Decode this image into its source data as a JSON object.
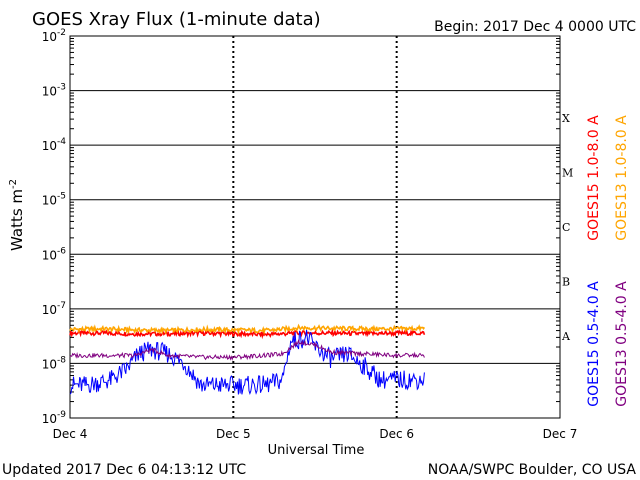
{
  "header": {
    "title": "GOES Xray Flux (1-minute data)",
    "begin": "Begin:  2017 Dec 4 0000 UTC"
  },
  "footer": {
    "updated": "Updated 2017 Dec  6 04:13:12 UTC",
    "credit": "NOAA/SWPC Boulder, CO USA"
  },
  "chart_data": {
    "type": "line",
    "title": "GOES Xray Flux (1-minute data)",
    "xlabel": "Universal Time",
    "ylabel": "Watts m",
    "ylabel_sup": "-2",
    "y_scale": "log",
    "ylim": [
      1e-09,
      0.01
    ],
    "y_ticks": [
      {
        "value": 1e-09,
        "base": "10",
        "exp": "-9"
      },
      {
        "value": 1e-08,
        "base": "10",
        "exp": "-8"
      },
      {
        "value": 1e-07,
        "base": "10",
        "exp": "-7"
      },
      {
        "value": 1e-06,
        "base": "10",
        "exp": "-6"
      },
      {
        "value": 1e-05,
        "base": "10",
        "exp": "-5"
      },
      {
        "value": 0.0001,
        "base": "10",
        "exp": "-4"
      },
      {
        "value": 0.001,
        "base": "10",
        "exp": "-3"
      },
      {
        "value": 0.01,
        "base": "10",
        "exp": "-2"
      }
    ],
    "x_unit": "days since 2017 Dec 4 0000 UTC",
    "xlim": [
      0,
      3
    ],
    "x_ticks": [
      {
        "value": 0,
        "label": "Dec 4"
      },
      {
        "value": 1,
        "label": "Dec 5"
      },
      {
        "value": 2,
        "label": "Dec 6"
      },
      {
        "value": 3,
        "label": "Dec 7"
      }
    ],
    "flare_classes": [
      {
        "label": "A",
        "value": 1e-08
      },
      {
        "label": "B",
        "value": 1e-07
      },
      {
        "label": "C",
        "value": 1e-06
      },
      {
        "label": "M",
        "value": 1e-05
      },
      {
        "label": "X",
        "value": 0.0001
      }
    ],
    "grid": true,
    "legend": "right",
    "series": [
      {
        "name": "GOES15 1.0-8.0 A",
        "color": "#ff0000",
        "x": [
          0,
          0.2,
          0.4,
          0.6,
          0.8,
          1.0,
          1.2,
          1.4,
          1.6,
          1.8,
          2.0,
          2.17
        ],
        "values": [
          3.6e-08,
          3.6e-08,
          3.5e-08,
          3.5e-08,
          3.6e-08,
          3.5e-08,
          3.4e-08,
          3.6e-08,
          3.6e-08,
          3.5e-08,
          3.6e-08,
          3.6e-08
        ]
      },
      {
        "name": "GOES13 1.0-8.0 A",
        "color": "#ffa500",
        "x": [
          0,
          0.2,
          0.4,
          0.6,
          0.8,
          1.0,
          1.2,
          1.4,
          1.6,
          1.8,
          2.0,
          2.17
        ],
        "values": [
          4.2e-08,
          4.3e-08,
          4.1e-08,
          4e-08,
          4.2e-08,
          4.1e-08,
          4e-08,
          4.5e-08,
          4.4e-08,
          4.3e-08,
          4.3e-08,
          4.4e-08
        ]
      },
      {
        "name": "GOES15 0.5-4.0 A",
        "color": "#0000ff",
        "x": [
          0,
          0.1,
          0.25,
          0.35,
          0.42,
          0.5,
          0.6,
          0.7,
          0.8,
          0.9,
          1.0,
          1.1,
          1.2,
          1.3,
          1.35,
          1.45,
          1.5,
          1.6,
          1.7,
          1.8,
          1.9,
          2.0,
          2.17
        ],
        "values": [
          4e-09,
          4e-09,
          5e-09,
          8e-09,
          1.5e-08,
          1.8e-08,
          1.5e-08,
          1e-08,
          4e-09,
          4e-09,
          4e-09,
          4e-09,
          4e-09,
          5e-09,
          2.5e-08,
          3e-08,
          2e-08,
          1.2e-08,
          1.5e-08,
          9e-09,
          5e-09,
          5e-09,
          5e-09
        ]
      },
      {
        "name": "GOES13 0.5-4.0 A",
        "color": "#800080",
        "x": [
          0,
          0.2,
          0.4,
          0.5,
          0.6,
          0.8,
          1.0,
          1.2,
          1.3,
          1.4,
          1.5,
          1.6,
          1.8,
          2.0,
          2.17
        ],
        "values": [
          1.4e-08,
          1.4e-08,
          1.4e-08,
          1.8e-08,
          1.4e-08,
          1.3e-08,
          1.3e-08,
          1.4e-08,
          1.5e-08,
          2.5e-08,
          2.2e-08,
          1.6e-08,
          1.5e-08,
          1.4e-08,
          1.4e-08
        ]
      }
    ]
  }
}
